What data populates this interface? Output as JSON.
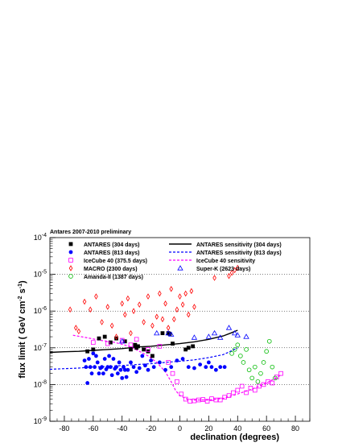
{
  "header": {
    "title": "Antares 2007-2010 preliminary"
  },
  "chart_data": {
    "type": "scatter",
    "title": "Antares 2007-2010 preliminary",
    "xlabel": "declination (degrees)",
    "ylabel_parts": {
      "main": "flux limit ( GeV cm",
      "exp1": "-2",
      "mid": " s",
      "exp2": "-1",
      "end": ")"
    },
    "xlim": [
      -90,
      90
    ],
    "ylim": [
      1e-09,
      0.0001
    ],
    "yscale": "log",
    "x_ticks": [
      -80,
      -60,
      -40,
      -20,
      0,
      20,
      40,
      60,
      80
    ],
    "y_ticks": [
      {
        "value": 1e-09,
        "base": "10",
        "exp": "-9"
      },
      {
        "value": 1e-08,
        "base": "10",
        "exp": "-8"
      },
      {
        "value": 1e-07,
        "base": "10",
        "exp": "-7"
      },
      {
        "value": 1e-06,
        "base": "10",
        "exp": "-6"
      },
      {
        "value": 1e-05,
        "base": "10",
        "exp": "-5"
      },
      {
        "value": 0.0001,
        "base": "10",
        "exp": "-4"
      }
    ],
    "grid_y": true,
    "legend_position": "top",
    "series": [
      {
        "name": "ANTARES (304 days)",
        "kind": "points",
        "marker": "square-filled",
        "color": "#000000",
        "x": [
          -64,
          -60,
          -56,
          -52,
          -48,
          -44,
          -38,
          -34,
          -31,
          -30,
          -29,
          -25,
          -22,
          -19,
          -12,
          -8,
          -7,
          -5,
          4,
          6,
          9
        ],
        "y": [
          8e-08,
          9e-08,
          1.8e-07,
          2e-07,
          1.4e-07,
          1.8e-07,
          1.5e-07,
          9e-08,
          1.2e-07,
          1e-07,
          1.1e-07,
          9e-08,
          8e-08,
          6e-08,
          2.5e-07,
          2.5e-07,
          2.4e-07,
          1.3e-07,
          9e-08,
          1e-07,
          1.1e-07
        ]
      },
      {
        "name": "ANTARES (813 days)",
        "kind": "points",
        "marker": "circle-filled",
        "color": "#0000ff",
        "x": [
          -66,
          -65,
          -64,
          -63,
          -62,
          -61,
          -60,
          -59,
          -58,
          -57,
          -56,
          -55,
          -54,
          -53,
          -52,
          -51,
          -50,
          -49,
          -48,
          -47,
          -46,
          -45,
          -44,
          -43,
          -42,
          -41,
          -40,
          -39,
          -38,
          -37,
          -36,
          -34,
          -32,
          -30,
          -28,
          -26,
          -24,
          -22,
          -20,
          -18,
          -14,
          -10,
          -6,
          -2,
          2,
          6,
          10,
          14,
          18,
          20,
          22,
          25,
          28,
          31
        ],
        "y": [
          4.5e-08,
          3e-08,
          1.1e-08,
          5e-08,
          3e-08,
          2e-08,
          7e-08,
          3e-08,
          6e-08,
          4e-08,
          2e-08,
          2.8e-08,
          3e-08,
          2e-08,
          5e-08,
          2.6e-08,
          3e-08,
          6e-08,
          3e-08,
          1.8e-08,
          5e-08,
          2.7e-08,
          3e-08,
          2e-08,
          4e-08,
          2.5e-08,
          1.5e-08,
          3e-08,
          2.5e-08,
          1.6e-08,
          2.5e-08,
          4e-08,
          3e-08,
          2.2e-08,
          2.8e-08,
          6e-08,
          3.3e-08,
          2.5e-08,
          4.5e-08,
          3e-08,
          4e-08,
          2.5e-08,
          3e-08,
          4.5e-08,
          5e-08,
          3e-08,
          2.8e-08,
          3.5e-08,
          3e-08,
          4e-08,
          3e-08,
          2.5e-08,
          3e-08,
          3e-08
        ]
      },
      {
        "name": "IceCube 40 (375.5 days)",
        "kind": "points",
        "marker": "square-open",
        "color": "#ff00ff",
        "x": [
          -60,
          -50,
          -40,
          -34,
          -30,
          -22,
          -14,
          -8,
          -5,
          -2,
          1,
          4,
          7,
          10,
          13,
          16,
          19,
          22,
          25,
          28,
          31,
          34,
          37,
          40,
          43,
          46,
          49,
          52,
          55,
          58,
          61,
          64,
          67,
          70
        ],
        "y": [
          1.4e-07,
          1.3e-07,
          1.6e-07,
          1.2e-07,
          1.7e-07,
          9e-08,
          1.1e-07,
          4e-08,
          2e-08,
          1.2e-08,
          5.5e-09,
          4e-09,
          3.5e-09,
          3.6e-09,
          3.8e-09,
          3.9e-09,
          3.5e-09,
          4.1e-09,
          3.8e-09,
          3.8e-09,
          4.5e-09,
          5e-09,
          6e-09,
          7e-09,
          9e-09,
          6e-09,
          8e-09,
          7e-09,
          9e-09,
          1e-08,
          1.2e-08,
          1.1e-08,
          1.6e-08,
          2e-08
        ]
      },
      {
        "name": "MACRO (2300 days)",
        "kind": "points",
        "marker": "diamond-open",
        "color": "#ff0000",
        "x": [
          -76,
          -72,
          -70,
          -66,
          -62,
          -58,
          -54,
          -50,
          -47,
          -44,
          -40,
          -38,
          -36,
          -34,
          -32,
          -28,
          -25,
          -22,
          -19,
          -16,
          -14,
          -12,
          -10,
          -8,
          -6,
          -4,
          -2,
          0,
          2,
          4,
          6,
          8,
          10,
          24,
          34,
          36,
          38,
          40
        ],
        "y": [
          1.1e-06,
          3.5e-07,
          2.8e-07,
          1.8e-06,
          1.1e-06,
          2.5e-06,
          5e-07,
          1.3e-06,
          4e-07,
          2e-07,
          1.6e-06,
          8e-07,
          2.2e-06,
          2.5e-07,
          1e-06,
          1.5e-06,
          5e-07,
          2.5e-06,
          4e-07,
          7e-07,
          3e-06,
          6e-07,
          1.6e-06,
          3.5e-07,
          4e-06,
          6e-07,
          1.1e-06,
          2.5e-06,
          1.5e-06,
          3e-06,
          8e-07,
          3.5e-06,
          1.3e-06,
          8e-06,
          9e-06,
          1.1e-05,
          1.3e-05,
          1.5e-05
        ]
      },
      {
        "name": "Amanda-II (1387 days)",
        "kind": "points",
        "marker": "circle-open",
        "color": "#00bb00",
        "x": [
          36,
          38,
          40,
          42,
          44,
          46,
          48,
          50,
          52,
          54,
          56,
          58,
          60,
          62,
          64,
          66
        ],
        "y": [
          7e-08,
          9e-08,
          1.2e-07,
          6e-08,
          4e-08,
          9e-08,
          2.5e-08,
          1.5e-08,
          3e-08,
          1.2e-08,
          2e-08,
          4e-08,
          8e-08,
          1.5e-07,
          3e-08,
          1.5e-08
        ]
      },
      {
        "name": "Super-K (2623 days)",
        "kind": "points",
        "marker": "triangle-open",
        "color": "#0000ff",
        "x": [
          -40,
          -16,
          -8,
          -6,
          10,
          20,
          24,
          28,
          34,
          38,
          40,
          46
        ],
        "y": [
          1.5e-07,
          2.5e-07,
          2.5e-07,
          2.3e-07,
          1.9e-07,
          2e-07,
          2.5e-07,
          1.9e-07,
          3.5e-07,
          2.5e-07,
          2.2e-07,
          2e-07
        ]
      },
      {
        "name": "ANTARES sensitivity (304 days)",
        "kind": "line",
        "style": "solid",
        "color": "#000000",
        "x": [
          -90,
          -80,
          -70,
          -60,
          -50,
          -40,
          -30,
          -20,
          -10,
          0,
          10,
          20,
          30,
          35,
          40
        ],
        "y": [
          7.5e-08,
          7.8e-08,
          8e-08,
          8.5e-08,
          9e-08,
          9.5e-08,
          1.05e-07,
          1.1e-07,
          1.2e-07,
          1.3e-07,
          1.45e-07,
          1.7e-07,
          2.1e-07,
          2.5e-07,
          3e-07
        ]
      },
      {
        "name": "ANTARES sensitivity (813 days)",
        "kind": "line",
        "style": "dashed",
        "color": "#0000ff",
        "x": [
          -90,
          -80,
          -70,
          -60,
          -50,
          -40,
          -30,
          -20,
          -10,
          0,
          10,
          20,
          30,
          35,
          40
        ],
        "y": [
          2.6e-08,
          2.7e-08,
          2.8e-08,
          3e-08,
          3.1e-08,
          3.3e-08,
          3.5e-08,
          3.7e-08,
          4e-08,
          4.3e-08,
          4.7e-08,
          5.4e-08,
          6.5e-08,
          8e-08,
          1e-07
        ]
      },
      {
        "name": "IceCube 40 sensitivity",
        "kind": "line",
        "style": "dashed",
        "color": "#ff00ff",
        "x": [
          -74,
          -65,
          -55,
          -45,
          -35,
          -28,
          -22,
          -16,
          -10,
          -6,
          -3,
          0,
          5,
          10,
          20,
          30,
          40,
          50,
          60,
          70
        ],
        "y": [
          2.2e-07,
          1.9e-07,
          1.6e-07,
          1.4e-07,
          1.1e-07,
          8e-08,
          6e-08,
          4e-08,
          2.2e-08,
          1.2e-08,
          7e-09,
          5e-09,
          4e-09,
          3.8e-09,
          3.8e-09,
          4.2e-09,
          5.5e-09,
          7.5e-09,
          1.1e-08,
          1.8e-08
        ]
      }
    ]
  }
}
